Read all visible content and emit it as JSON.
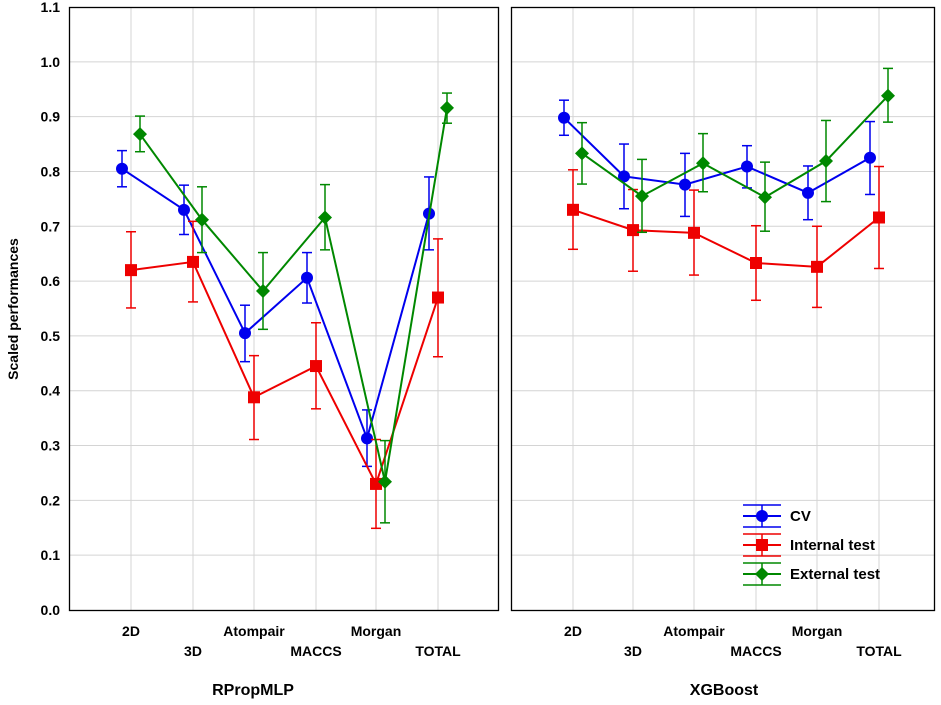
{
  "chart_data": {
    "type": "line",
    "ylabel": "Scaled performances",
    "ylim": [
      0.0,
      1.1
    ],
    "yticks": [
      "0.0",
      "0.1",
      "0.2",
      "0.3",
      "0.4",
      "0.5",
      "0.6",
      "0.7",
      "0.8",
      "0.9",
      "1.0",
      "1.1"
    ],
    "grid": true,
    "legend_position": "bottom-right",
    "colors": {
      "CV": "#0000ee",
      "Internal test": "#ee0000",
      "External test": "#008800"
    },
    "markers": {
      "CV": "circle",
      "Internal test": "square",
      "External test": "diamond"
    },
    "series_names": [
      "CV",
      "Internal test",
      "External test"
    ],
    "panels": [
      {
        "title": "RPropMLP",
        "categories": [
          "2D",
          "3D",
          "Atompair",
          "MACCS",
          "Morgan",
          "TOTAL"
        ],
        "series": [
          {
            "name": "CV",
            "values": [
              0.805,
              0.73,
              0.505,
              0.606,
              0.313,
              0.723
            ],
            "err_low": [
              0.772,
              0.685,
              0.453,
              0.56,
              0.262,
              0.657
            ],
            "err_high": [
              0.838,
              0.775,
              0.556,
              0.652,
              0.365,
              0.79
            ]
          },
          {
            "name": "Internal test",
            "values": [
              0.62,
              0.635,
              0.388,
              0.445,
              0.23,
              0.57
            ],
            "err_low": [
              0.551,
              0.562,
              0.311,
              0.367,
              0.149,
              0.462
            ],
            "err_high": [
              0.69,
              0.709,
              0.464,
              0.524,
              0.311,
              0.677
            ]
          },
          {
            "name": "External test",
            "values": [
              0.868,
              0.712,
              0.582,
              0.716,
              0.234,
              0.916
            ],
            "err_low": [
              0.836,
              0.652,
              0.512,
              0.657,
              0.159,
              0.888
            ],
            "err_high": [
              0.901,
              0.772,
              0.652,
              0.776,
              0.309,
              0.943
            ]
          }
        ]
      },
      {
        "title": "XGBoost",
        "categories": [
          "2D",
          "3D",
          "Atompair",
          "MACCS",
          "Morgan",
          "TOTAL"
        ],
        "series": [
          {
            "name": "CV",
            "values": [
              0.898,
              0.791,
              0.776,
              0.809,
              0.761,
              0.825
            ],
            "err_low": [
              0.866,
              0.732,
              0.718,
              0.77,
              0.712,
              0.758
            ],
            "err_high": [
              0.93,
              0.85,
              0.833,
              0.847,
              0.81,
              0.891
            ]
          },
          {
            "name": "Internal test",
            "values": [
              0.73,
              0.693,
              0.688,
              0.633,
              0.626,
              0.716
            ],
            "err_low": [
              0.658,
              0.618,
              0.611,
              0.565,
              0.552,
              0.623
            ],
            "err_high": [
              0.803,
              0.767,
              0.766,
              0.701,
              0.7,
              0.809
            ]
          },
          {
            "name": "External test",
            "values": [
              0.833,
              0.755,
              0.815,
              0.753,
              0.819,
              0.938
            ],
            "err_low": [
              0.777,
              0.689,
              0.763,
              0.691,
              0.745,
              0.89
            ],
            "err_high": [
              0.889,
              0.822,
              0.869,
              0.817,
              0.893,
              0.988
            ]
          }
        ]
      }
    ]
  }
}
